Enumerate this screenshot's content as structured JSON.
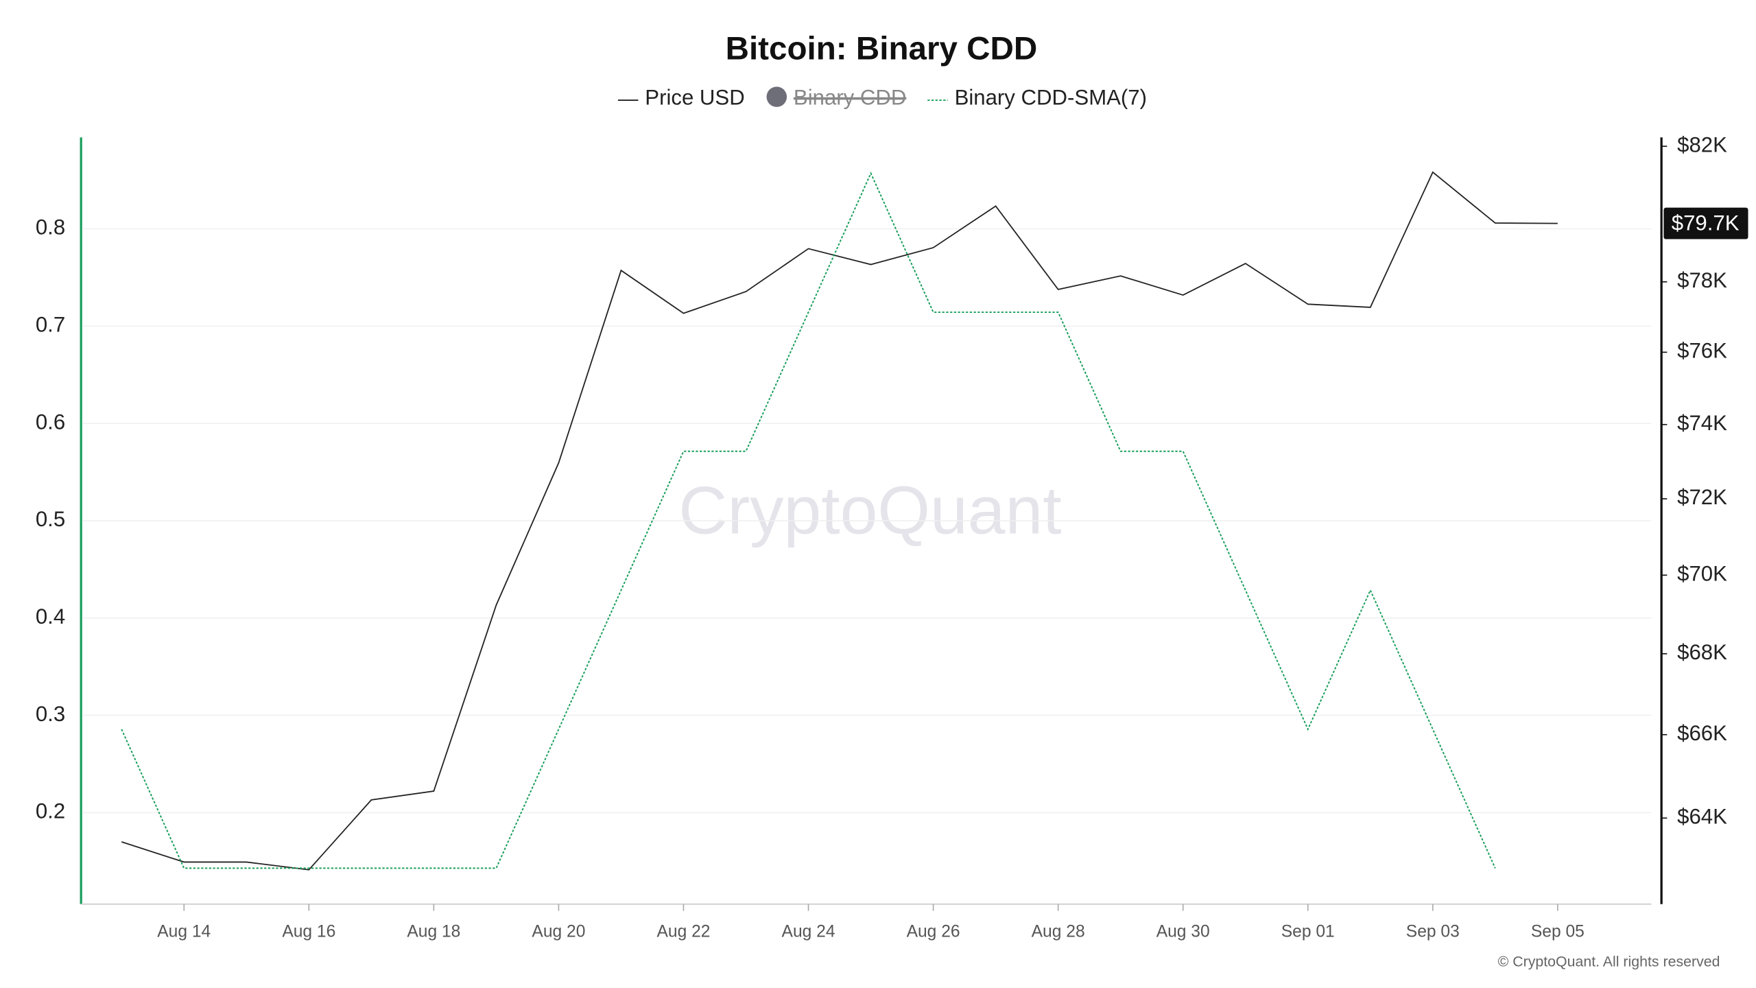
{
  "chart_data": {
    "type": "line",
    "title": "Bitcoin: Binary CDD",
    "watermark": "CryptoQuant",
    "copyright": "© CryptoQuant. All rights reserved",
    "categories": [
      null,
      "Aug 14",
      null,
      "Aug 16",
      null,
      "Aug 18",
      null,
      "Aug 20",
      null,
      "Aug 22",
      null,
      "Aug 24",
      null,
      "Aug 26",
      null,
      "Aug 28",
      null,
      "Aug 30",
      null,
      "Sep 01",
      null,
      "Sep 03",
      null,
      "Sep 05"
    ],
    "series": [
      {
        "name": "Price USD",
        "color": "#222222",
        "axis": "y2",
        "style": "solid",
        "values": [
          63440,
          62970,
          62970,
          62790,
          64430,
          64640,
          69230,
          72960,
          78330,
          77100,
          77720,
          78960,
          78500,
          78990,
          80210,
          77780,
          78170,
          77620,
          78530,
          77360,
          77270,
          81220,
          79710,
          79700
        ],
        "value_labels": [
          null,
          null,
          null,
          null,
          null,
          null,
          null,
          null,
          null,
          null,
          null,
          null,
          null,
          null,
          null,
          null,
          null,
          null,
          null,
          null,
          null,
          null,
          null,
          "$79.7K"
        ]
      },
      {
        "name": "Binary CDD",
        "color": "#6e6e78",
        "axis": "y",
        "style": "marker",
        "hidden": true,
        "values": [
          null,
          null,
          null,
          null,
          null,
          null,
          null,
          null,
          null,
          null,
          null,
          null,
          null,
          null,
          null,
          null,
          null,
          null,
          null,
          null,
          null,
          null,
          null,
          null
        ]
      },
      {
        "name": "Binary CDD-SMA(7)",
        "color": "#1a9e5c",
        "axis": "y",
        "style": "dotted",
        "values": [
          0.2857,
          0.1429,
          0.1429,
          0.1429,
          0.1429,
          0.1429,
          0.1429,
          0.2857,
          0.4286,
          0.5714,
          0.5714,
          0.7143,
          0.8571,
          0.7143,
          0.7143,
          0.7143,
          0.5714,
          0.5714,
          0.4286,
          0.2857,
          0.4286,
          0.2857,
          0.1429,
          null
        ]
      }
    ],
    "ylim": [
      0.106,
      0.894
    ],
    "yticks": [
      0.2,
      0.3,
      0.4,
      0.5,
      0.6,
      0.7,
      0.8
    ],
    "y2lim": [
      62000,
      82270
    ],
    "y2log": true,
    "y2ticks": [
      {
        "value": 64000,
        "label": "$64K"
      },
      {
        "value": 66000,
        "label": "$66K"
      },
      {
        "value": 68000,
        "label": "$68K"
      },
      {
        "value": 70000,
        "label": "$70K"
      },
      {
        "value": 72000,
        "label": "$72K"
      },
      {
        "value": 74000,
        "label": "$74K"
      },
      {
        "value": 76000,
        "label": "$76K"
      },
      {
        "value": 78000,
        "label": "$78K"
      },
      {
        "value": 82000,
        "label": "$82K"
      }
    ],
    "grid": true,
    "legend": "top"
  }
}
